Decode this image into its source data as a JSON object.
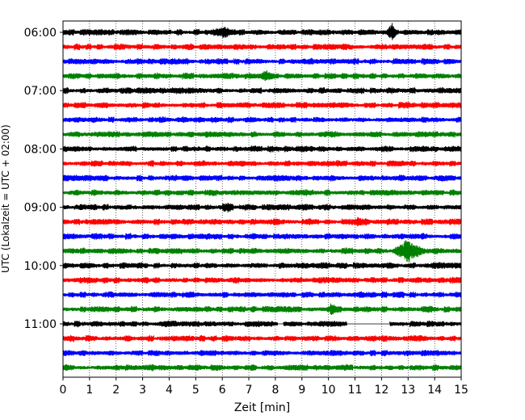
{
  "chart_data": {
    "type": "line",
    "title": "",
    "xlabel": "Zeit  [min]",
    "ylabel": "UTC (Lokalzeit = UTC + 02:00)",
    "xlim": [
      0,
      15
    ],
    "x_ticks": [
      0,
      1,
      2,
      3,
      4,
      5,
      6,
      7,
      8,
      9,
      10,
      11,
      12,
      13,
      14,
      15
    ],
    "x_tick_labels": [
      "0",
      "1",
      "2",
      "3",
      "4",
      "5",
      "6",
      "7",
      "8",
      "9",
      "10",
      "11",
      "12",
      "13",
      "14",
      "15"
    ],
    "y_tick_labels": [
      "06:00",
      "07:00",
      "08:00",
      "09:00",
      "10:00",
      "11:00"
    ],
    "y_tick_rows": [
      0,
      4,
      8,
      12,
      16,
      20
    ],
    "grid": "vertical dotted",
    "line_colors": [
      "#000000",
      "#ff0000",
      "#0000ff",
      "#008000"
    ],
    "traces": [
      {
        "start": "06:00",
        "color": "#000000",
        "gap_minutes": []
      },
      {
        "start": "06:15",
        "color": "#ff0000",
        "gap_minutes": []
      },
      {
        "start": "06:30",
        "color": "#0000ff",
        "gap_minutes": []
      },
      {
        "start": "06:45",
        "color": "#008000",
        "gap_minutes": []
      },
      {
        "start": "07:00",
        "color": "#000000",
        "gap_minutes": []
      },
      {
        "start": "07:15",
        "color": "#ff0000",
        "gap_minutes": []
      },
      {
        "start": "07:30",
        "color": "#0000ff",
        "gap_minutes": []
      },
      {
        "start": "07:45",
        "color": "#008000",
        "gap_minutes": []
      },
      {
        "start": "08:00",
        "color": "#000000",
        "gap_minutes": []
      },
      {
        "start": "08:15",
        "color": "#ff0000",
        "gap_minutes": []
      },
      {
        "start": "08:30",
        "color": "#0000ff",
        "gap_minutes": []
      },
      {
        "start": "08:45",
        "color": "#008000",
        "gap_minutes": []
      },
      {
        "start": "09:00",
        "color": "#000000",
        "gap_minutes": []
      },
      {
        "start": "09:15",
        "color": "#ff0000",
        "gap_minutes": []
      },
      {
        "start": "09:30",
        "color": "#0000ff",
        "gap_minutes": []
      },
      {
        "start": "09:45",
        "color": "#008000",
        "gap_minutes": []
      },
      {
        "start": "10:00",
        "color": "#000000",
        "gap_minutes": []
      },
      {
        "start": "10:15",
        "color": "#ff0000",
        "gap_minutes": []
      },
      {
        "start": "10:30",
        "color": "#0000ff",
        "gap_minutes": []
      },
      {
        "start": "10:45",
        "color": "#008000",
        "gap_minutes": []
      },
      {
        "start": "11:00",
        "color": "#000000",
        "gap_minutes": [
          [
            8.1,
            8.3
          ],
          [
            10.7,
            12.3
          ]
        ]
      },
      {
        "start": "11:15",
        "color": "#ff0000",
        "gap_minutes": []
      },
      {
        "start": "11:30",
        "color": "#0000ff",
        "gap_minutes": []
      },
      {
        "start": "11:45",
        "color": "#008000",
        "gap_minutes": []
      }
    ],
    "events": [
      {
        "row": 0,
        "minute": 12.4,
        "amp": 2.2,
        "dur": 0.18
      },
      {
        "row": 0,
        "minute": 6.1,
        "amp": 1.5,
        "dur": 0.5
      },
      {
        "row": 3,
        "minute": 7.7,
        "amp": 1.6,
        "dur": 0.3
      },
      {
        "row": 9,
        "minute": 10.0,
        "amp": 1.5,
        "dur": 0.25
      },
      {
        "row": 12,
        "minute": 6.1,
        "amp": 1.5,
        "dur": 0.3
      },
      {
        "row": 13,
        "minute": 11.2,
        "amp": 1.6,
        "dur": 0.35
      },
      {
        "row": 15,
        "minute": 13.1,
        "amp": 2.6,
        "dur": 0.7
      },
      {
        "row": 19,
        "minute": 10.1,
        "amp": 1.6,
        "dur": 0.2
      }
    ]
  }
}
